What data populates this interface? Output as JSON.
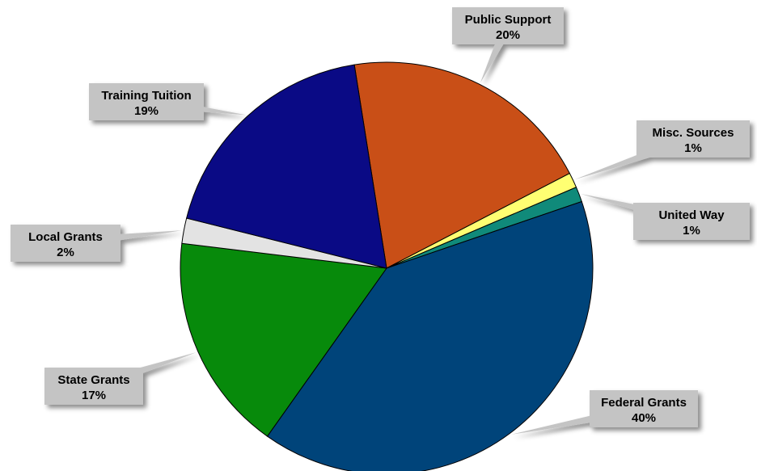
{
  "chart_data": {
    "type": "pie",
    "title": "",
    "slices": [
      {
        "label": "Public Support",
        "value_label": "20%",
        "value": 20.1,
        "color": "#c94f17"
      },
      {
        "label": "Misc. Sources",
        "value_label": "1%",
        "value": 1.2,
        "color": "#ffff72"
      },
      {
        "label": "United Way",
        "value_label": "1%",
        "value": 1.2,
        "color": "#108a7a"
      },
      {
        "label": "Federal Grants",
        "value_label": "40%",
        "value": 40.5,
        "color": "#00447a"
      },
      {
        "label": "State Grants",
        "value_label": "17%",
        "value": 17.3,
        "color": "#078a0b"
      },
      {
        "label": "Local Grants",
        "value_label": "2%",
        "value": 2.0,
        "color": "#e3e3e3"
      },
      {
        "label": "Training Tuition",
        "value_label": "19%",
        "value": 18.8,
        "color": "#0a0a85"
      }
    ]
  }
}
